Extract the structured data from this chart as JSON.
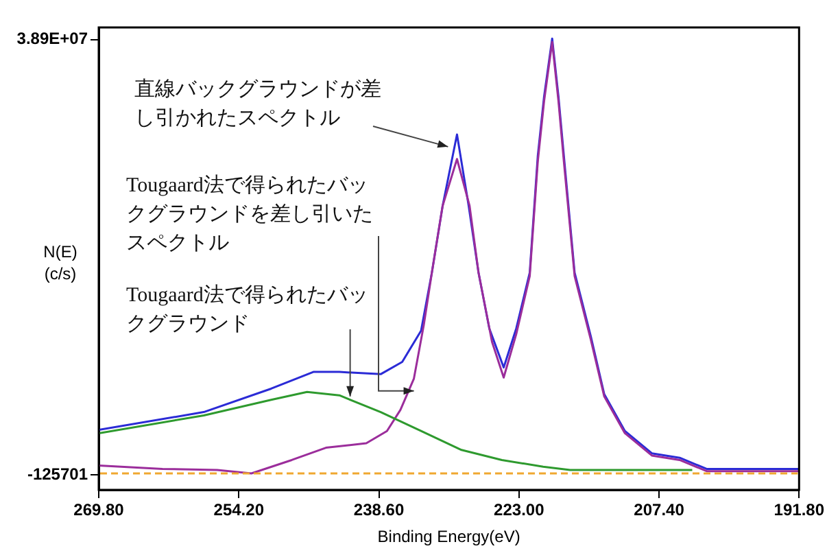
{
  "chart_data": {
    "type": "line",
    "xlabel": "Binding Energy(eV)",
    "ylabel": "N(E)\n(c/s)",
    "xlim": [
      269.8,
      191.8
    ],
    "xticks": [
      {
        "value": 269.8,
        "label": "269.80"
      },
      {
        "value": 254.2,
        "label": "254.20"
      },
      {
        "value": 238.6,
        "label": "238.60"
      },
      {
        "value": 223,
        "label": "223.00"
      },
      {
        "value": 207.4,
        "label": "207.40"
      },
      {
        "value": 191.8,
        "label": "191.80"
      }
    ],
    "ylim": [
      -1480000,
      40000000
    ],
    "yticks": [
      {
        "value": 38900000,
        "label": "3.89E+07"
      },
      -125701
    ],
    "grid": false,
    "legend": false,
    "marker": "none",
    "line_style": "solid",
    "series": [
      {
        "color": "#2b2bd6",
        "x": [
          269.8,
          258.1,
          250.6,
          245.9,
          243.0,
          238.4,
          236.0,
          233.9,
          232.7,
          231.5,
          229.9,
          228.6,
          227.5,
          226.3,
          224.7,
          223.3,
          221.8,
          220.9,
          220.2,
          219.3,
          218.6,
          218.0,
          216.8,
          215.0,
          213.5,
          211.2,
          208.2,
          205.1,
          202.1,
          196.0,
          191.8
        ],
        "values": [
          3900000,
          5500000,
          7600000,
          9100000,
          9100000,
          8900000,
          10000000,
          12800000,
          18000000,
          24000000,
          30400000,
          24000000,
          18000000,
          13000000,
          9500000,
          13000000,
          18000000,
          28500000,
          33800000,
          39000000,
          33800000,
          28500000,
          18000000,
          12300000,
          7100000,
          3800000,
          1800000,
          1400000,
          400000,
          400000,
          400000
        ]
      },
      {
        "color": "#9b2d9b",
        "x": [
          269.8,
          262.7,
          256.6,
          252.8,
          248.3,
          244.5,
          240.0,
          237.7,
          236.2,
          234.7,
          233.6,
          232.7,
          231.5,
          229.9,
          228.5,
          227.5,
          226.0,
          224.7,
          223.3,
          221.8,
          220.9,
          220.2,
          219.3,
          218.6,
          218.0,
          216.8,
          215.0,
          213.5,
          211.2,
          208.2,
          205.1,
          202.1,
          196.0,
          191.8
        ],
        "values": [
          700000,
          400000,
          300000,
          0,
          1200000,
          2300000,
          2700000,
          3800000,
          5700000,
          8500000,
          13300000,
          18000000,
          24000000,
          28200000,
          24000000,
          18000000,
          11800000,
          8600000,
          12500000,
          17700000,
          28000000,
          33400000,
          38700000,
          33400000,
          28000000,
          17700000,
          12000000,
          6900000,
          3600000,
          1600000,
          1200000,
          200000,
          200000,
          200000
        ]
      },
      {
        "color": "#2e9a2e",
        "x": [
          269.8,
          258.1,
          250.6,
          246.6,
          243.0,
          238.4,
          233.9,
          229.4,
          224.9,
          220.3,
          217.3,
          203.7
        ],
        "values": [
          3600000,
          5200000,
          6600000,
          7300000,
          7000000,
          5500000,
          3800000,
          2100000,
          1200000,
          600000,
          300000,
          300000
        ]
      }
    ],
    "ref_lines": [
      {
        "axis": "y",
        "value": 0,
        "color": "#f0a830",
        "line_style": "dashed"
      }
    ],
    "annotations": [
      {
        "text": "直線バックグラウンドが差し引かれたスペクトル",
        "x": 230.9,
        "y": 29300000
      },
      {
        "text": "Tougaard法で得られたバックグラウンドを差し引いたスペクトル",
        "x": 234.7,
        "y": 7400000
      },
      {
        "text": "Tougaard法で得られたバックグラウンド",
        "x": 241.8,
        "y": 6900000
      }
    ]
  }
}
